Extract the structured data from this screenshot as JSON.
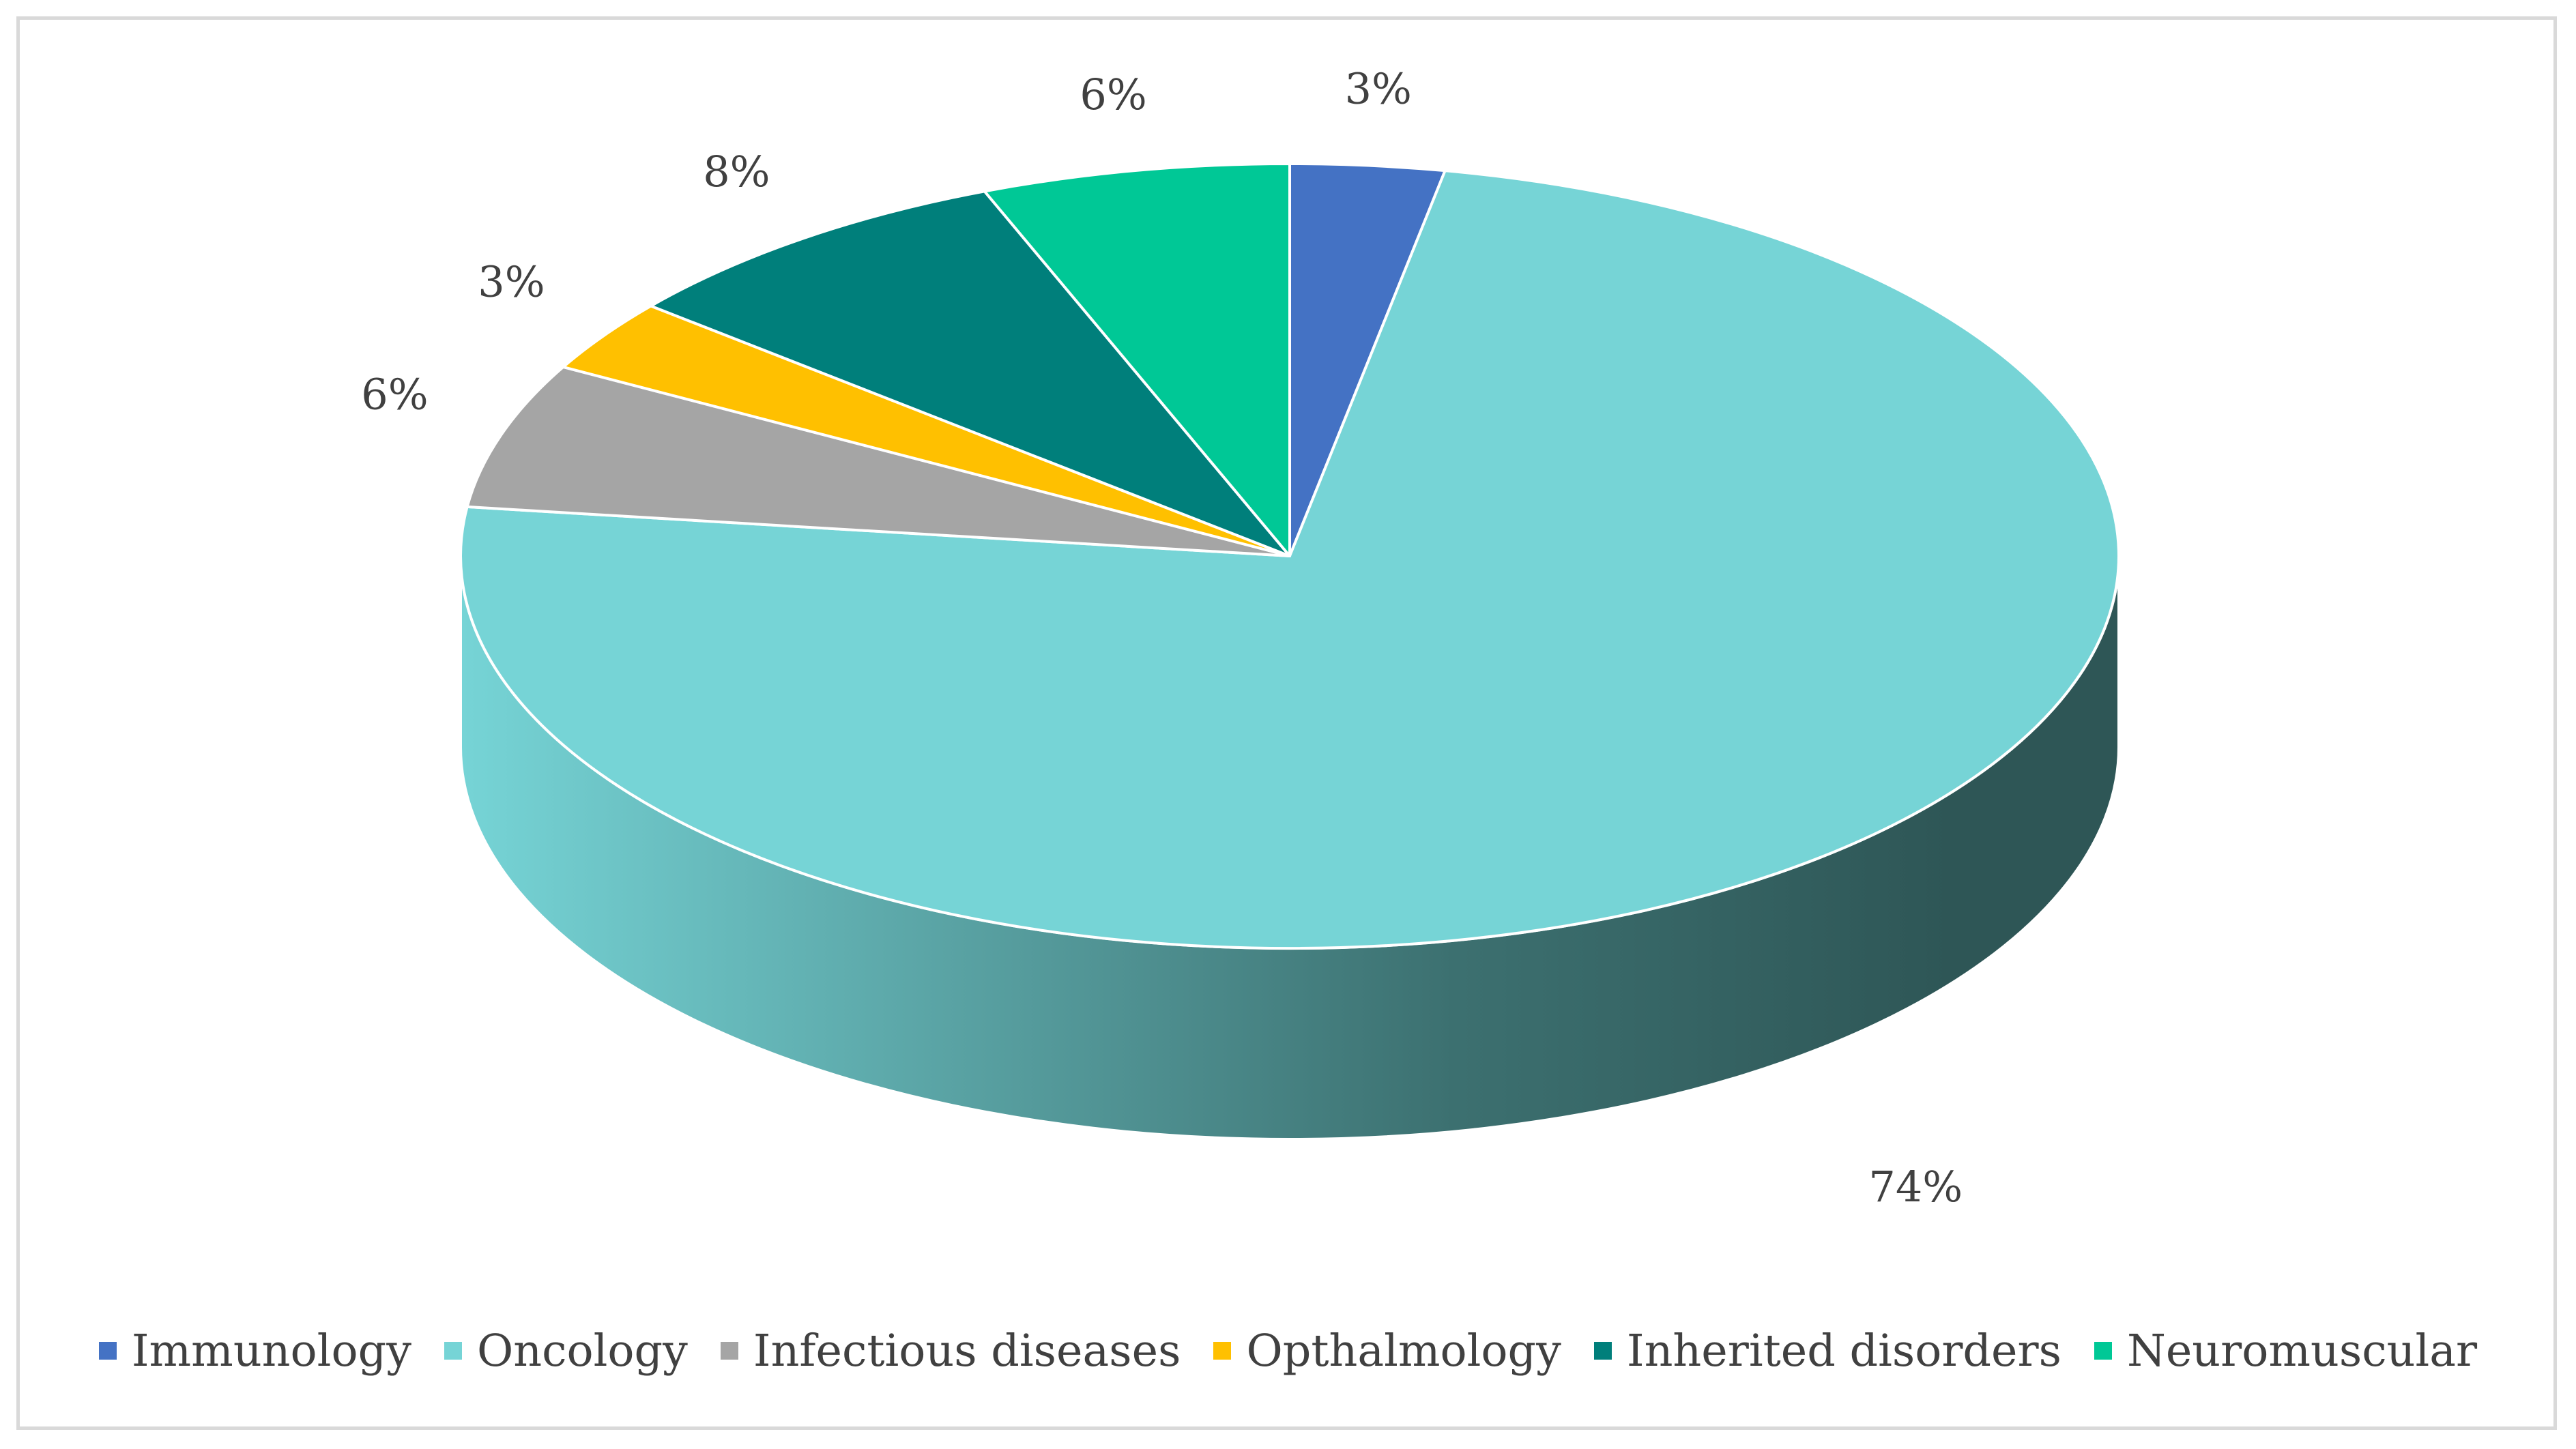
{
  "chart_data": {
    "type": "pie",
    "style": "3d",
    "title": "",
    "unit": "%",
    "legend_position": "bottom",
    "slices": [
      {
        "name": "Immunology",
        "value": 3,
        "label": "3%",
        "color": "#4472C4"
      },
      {
        "name": "Oncology",
        "value": 74,
        "label": "74%",
        "color": "#76D4D6"
      },
      {
        "name": "Infectious diseases",
        "value": 6,
        "label": "6%",
        "color": "#A5A5A5"
      },
      {
        "name": "Opthalmology",
        "value": 3,
        "label": "3%",
        "color": "#FFC000"
      },
      {
        "name": "Inherited disorders",
        "value": 8,
        "label": "8%",
        "color": "#007F7B"
      },
      {
        "name": "Neuromuscular",
        "value": 6,
        "label": "6%",
        "color": "#00C896"
      }
    ]
  },
  "colors": {
    "side_light": "#76D4D6",
    "side_dark": "#2E5656",
    "frame_border": "#D9D9D9",
    "label_text": "#404040"
  }
}
